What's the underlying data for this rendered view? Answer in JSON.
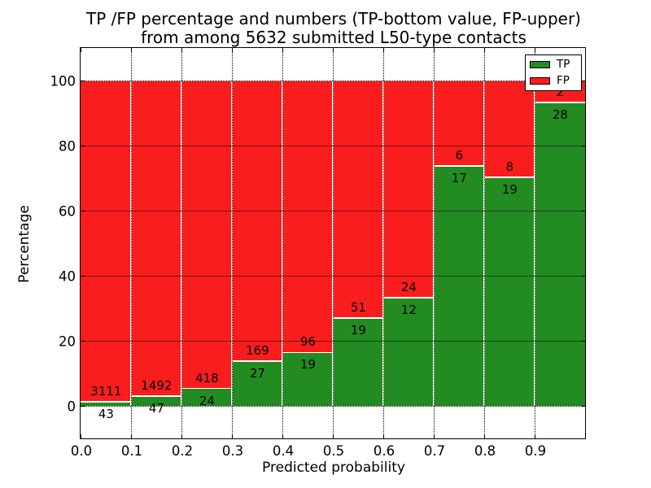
{
  "title": {
    "line1": "TP /FP percentage and numbers (TP-bottom value, FP-upper)",
    "line2": "from among 5632 submitted L50-type contacts"
  },
  "axes": {
    "xlabel": "Predicted probability",
    "ylabel": "Percentage",
    "xtick_labels": [
      "0.0",
      "0.1",
      "0.2",
      "0.3",
      "0.4",
      "0.5",
      "0.6",
      "0.7",
      "0.8",
      "0.9"
    ],
    "xtick_values": [
      0.0,
      0.1,
      0.2,
      0.3,
      0.4,
      0.5,
      0.6,
      0.7,
      0.8,
      0.9
    ],
    "ytick_labels": [
      "0",
      "20",
      "40",
      "60",
      "80",
      "100"
    ],
    "ytick_values": [
      0,
      20,
      40,
      60,
      80,
      100
    ],
    "xlim": [
      0.0,
      1.0
    ],
    "ylim": [
      -10,
      110
    ],
    "grid_style": "dotted",
    "grid_color": "#000000"
  },
  "legend": {
    "position": "upper right",
    "items": [
      {
        "label": "TP",
        "color": "#228b22"
      },
      {
        "label": "FP",
        "color": "#fa1d1d"
      }
    ]
  },
  "chart_data": {
    "type": "bar",
    "stacked": true,
    "normalized_each_bar_to_percent": true,
    "title": "TP /FP percentage and numbers (TP-bottom value, FP-upper) from among 5632 submitted L50-type contacts",
    "xlabel": "Predicted probability",
    "ylabel": "Percentage",
    "total_contacts": 5632,
    "x_bin_edges": [
      0.0,
      0.1,
      0.2,
      0.3,
      0.4,
      0.5,
      0.6,
      0.7,
      0.8,
      0.9,
      1.0
    ],
    "categories": [
      "0.0-0.1",
      "0.1-0.2",
      "0.2-0.3",
      "0.3-0.4",
      "0.4-0.5",
      "0.5-0.6",
      "0.6-0.7",
      "0.7-0.8",
      "0.8-0.9",
      "0.9-1.0"
    ],
    "series": [
      {
        "name": "TP",
        "color": "#228b22",
        "counts": [
          43,
          47,
          24,
          27,
          19,
          19,
          12,
          17,
          19,
          28
        ]
      },
      {
        "name": "FP",
        "color": "#fa1d1d",
        "counts": [
          3111,
          1492,
          418,
          169,
          96,
          51,
          24,
          6,
          8,
          2
        ]
      }
    ],
    "bar_label_rule": "TP count printed below the TP/FP boundary, FP count printed above it",
    "ylim": [
      -10,
      110
    ],
    "grid": "dotted",
    "legend_position": "upper right",
    "bar_edge_color": "#ffffff"
  }
}
